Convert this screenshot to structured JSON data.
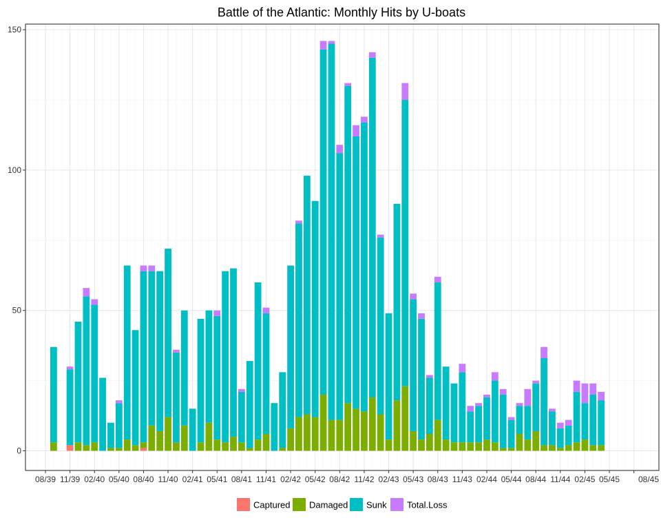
{
  "chart_data": {
    "type": "bar",
    "stacked": true,
    "title": "Battle of the Atlantic: Monthly Hits by U-boats",
    "xlabel": "",
    "ylabel": "",
    "ylim": [
      -7,
      152
    ],
    "y_ticks": [
      0,
      50,
      100,
      150
    ],
    "x_tick_labels": [
      "08/39",
      "11/39",
      "02/40",
      "05/40",
      "08/40",
      "11/40",
      "02/41",
      "05/41",
      "08/41",
      "11/41",
      "02/42",
      "05/42",
      "08/42",
      "11/42",
      "02/43",
      "05/43",
      "08/43",
      "11/43",
      "02/44",
      "05/44",
      "08/44",
      "11/44",
      "02/45",
      "05/45",
      "08/45"
    ],
    "grid": true,
    "legend_position": "bottom",
    "colors": {
      "Captured": "#F8766D",
      "Damaged": "#7CAE00",
      "Sunk": "#00BFC4",
      "Total.Loss": "#C77CFF"
    },
    "categories": [
      "09/39",
      "10/39",
      "11/39",
      "12/39",
      "01/40",
      "02/40",
      "03/40",
      "04/40",
      "05/40",
      "06/40",
      "07/40",
      "08/40",
      "09/40",
      "10/40",
      "11/40",
      "12/40",
      "01/41",
      "02/41",
      "03/41",
      "04/41",
      "05/41",
      "06/41",
      "07/41",
      "08/41",
      "09/41",
      "10/41",
      "11/41",
      "12/41",
      "01/42",
      "02/42",
      "03/42",
      "04/42",
      "05/42",
      "06/42",
      "07/42",
      "08/42",
      "09/42",
      "10/42",
      "11/42",
      "12/42",
      "01/43",
      "02/43",
      "03/43",
      "04/43",
      "05/43",
      "06/43",
      "07/43",
      "08/43",
      "09/43",
      "10/43",
      "11/43",
      "12/43",
      "01/44",
      "02/44",
      "03/44",
      "04/44",
      "05/44",
      "06/44",
      "07/44",
      "08/44",
      "09/44",
      "10/44",
      "11/44",
      "12/44",
      "01/45",
      "02/45",
      "03/45",
      "04/45"
    ],
    "series": [
      {
        "name": "Captured",
        "values": [
          0,
          0,
          2,
          0,
          0,
          0,
          0,
          0,
          0,
          0,
          0,
          1,
          0,
          0,
          0,
          0,
          0,
          0,
          0,
          0,
          0,
          0,
          0,
          0,
          0,
          0,
          0,
          0,
          0,
          0,
          0,
          0,
          0,
          0,
          0,
          0,
          0,
          0,
          0,
          0,
          0,
          0,
          0,
          0,
          0,
          0,
          0,
          0,
          0,
          0,
          0,
          0,
          0,
          0,
          0,
          0,
          0,
          0,
          0,
          0,
          0,
          0,
          0,
          0,
          0,
          0,
          0,
          0
        ]
      },
      {
        "name": "Damaged",
        "values": [
          3,
          0,
          0,
          3,
          2,
          3,
          0,
          1,
          1,
          4,
          2,
          2,
          9,
          7,
          12,
          3,
          9,
          0,
          3,
          10,
          4,
          3,
          5,
          3,
          1,
          4,
          6,
          0,
          1,
          8,
          12,
          13,
          12,
          20,
          11,
          11,
          17,
          15,
          14,
          19,
          13,
          4,
          18,
          23,
          7,
          4,
          6,
          11,
          4,
          3,
          3,
          3,
          3,
          4,
          3,
          1,
          1,
          6,
          4,
          7,
          2,
          2,
          1,
          2,
          3,
          4,
          2,
          2
        ]
      },
      {
        "name": "Sunk",
        "values": [
          34,
          0,
          27,
          43,
          53,
          49,
          26,
          9,
          16,
          62,
          41,
          61,
          55,
          57,
          60,
          32,
          41,
          15,
          44,
          40,
          44,
          61,
          60,
          18,
          31,
          56,
          43,
          17,
          27,
          58,
          69,
          85,
          77,
          123,
          134,
          95,
          113,
          97,
          103,
          121,
          63,
          45,
          70,
          102,
          47,
          43,
          20,
          49,
          26,
          21,
          25,
          11,
          13,
          15,
          22,
          19,
          10,
          10,
          12,
          17,
          31,
          12,
          7,
          7,
          18,
          13,
          18,
          16
        ]
      },
      {
        "name": "Total.Loss",
        "values": [
          0,
          0,
          1,
          0,
          3,
          2,
          0,
          0,
          1,
          0,
          0,
          2,
          2,
          0,
          0,
          1,
          0,
          0,
          0,
          0,
          2,
          0,
          0,
          1,
          0,
          0,
          2,
          0,
          0,
          0,
          1,
          0,
          0,
          3,
          1,
          3,
          1,
          4,
          2,
          2,
          1,
          0,
          0,
          6,
          2,
          2,
          1,
          2,
          0,
          0,
          3,
          2,
          1,
          1,
          3,
          2,
          1,
          1,
          6,
          1,
          4,
          1,
          2,
          2,
          4,
          7,
          4,
          3
        ]
      }
    ]
  }
}
